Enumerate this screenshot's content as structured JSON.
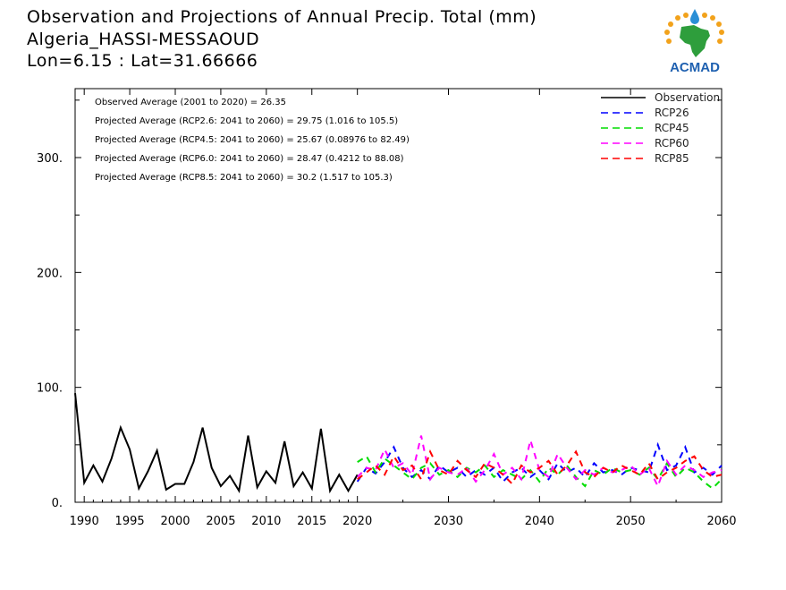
{
  "header": {
    "title_line1": "Observation and Projections of Annual Precip. Total (mm)",
    "title_line2": "Algeria_HASSI-MESSAOUD",
    "title_line3": "Lon=6.15 : Lat=31.66666"
  },
  "logo": {
    "text": "ACMAD",
    "icon": "acmad-africa-logo"
  },
  "colors": {
    "observation": "#000000",
    "rcp26": "#0000ff",
    "rcp45": "#00dd00",
    "rcp60": "#ff00ff",
    "rcp85": "#ff0000"
  },
  "chart_data": {
    "type": "line",
    "xlim": [
      1989,
      2060
    ],
    "ylim": [
      0,
      360
    ],
    "xticks": [
      1990,
      1995,
      2000,
      2005,
      2010,
      2015,
      2020,
      2030,
      2040,
      2050,
      2060
    ],
    "yticks": [
      0,
      100,
      200,
      300
    ],
    "ytick_labels": [
      "0.",
      "100.",
      "200.",
      "300."
    ],
    "legend_position": "top-right",
    "annotations": [
      "Observed Average (2001 to 2020) = 26.35",
      "Projected Average (RCP2.6: 2041 to 2060) = 29.75 (1.016 to 105.5)",
      "Projected Average (RCP4.5: 2041 to 2060) = 25.67 (0.08976 to 82.49)",
      "Projected Average (RCP6.0: 2041 to 2060) = 28.47 (0.4212 to 88.08)",
      "Projected Average (RCP8.5: 2041 to 2060) = 30.2 (1.517 to 105.3)"
    ],
    "series": [
      {
        "name": "Observation",
        "style": "solid",
        "color": "#000000",
        "x": [
          1989,
          1990,
          1991,
          1992,
          1993,
          1994,
          1995,
          1996,
          1997,
          1998,
          1999,
          2000,
          2001,
          2002,
          2003,
          2004,
          2005,
          2006,
          2007,
          2008,
          2009,
          2010,
          2011,
          2012,
          2013,
          2014,
          2015,
          2016,
          2017,
          2018,
          2019,
          2020
        ],
        "y": [
          95,
          17,
          32,
          18,
          38,
          65,
          46,
          12,
          27,
          45,
          11,
          16,
          16,
          35,
          65,
          30,
          14,
          23,
          10,
          58,
          13,
          27,
          17,
          53,
          14,
          26,
          12,
          64,
          10,
          24,
          10,
          24
        ]
      },
      {
        "name": "RCP26",
        "style": "dashed",
        "color": "#0000ff",
        "x": [
          2020,
          2021,
          2022,
          2023,
          2024,
          2025,
          2026,
          2027,
          2028,
          2029,
          2030,
          2031,
          2032,
          2033,
          2034,
          2035,
          2036,
          2037,
          2038,
          2039,
          2040,
          2041,
          2042,
          2043,
          2044,
          2045,
          2046,
          2047,
          2048,
          2049,
          2050,
          2051,
          2052,
          2053,
          2054,
          2055,
          2056,
          2057,
          2058,
          2059,
          2060
        ],
        "y": [
          18,
          30,
          25,
          35,
          48,
          30,
          22,
          28,
          20,
          32,
          26,
          30,
          22,
          28,
          24,
          30,
          18,
          26,
          30,
          22,
          28,
          20,
          34,
          26,
          30,
          22,
          34,
          26,
          28,
          24,
          30,
          28,
          26,
          50,
          28,
          32,
          48,
          26,
          30,
          24,
          32
        ]
      },
      {
        "name": "RCP45",
        "style": "dashed",
        "color": "#00dd00",
        "x": [
          2020,
          2021,
          2022,
          2023,
          2024,
          2025,
          2026,
          2027,
          2028,
          2029,
          2030,
          2031,
          2032,
          2033,
          2034,
          2035,
          2036,
          2037,
          2038,
          2039,
          2040,
          2041,
          2042,
          2043,
          2044,
          2045,
          2046,
          2047,
          2048,
          2049,
          2050,
          2051,
          2052,
          2053,
          2054,
          2055,
          2056,
          2057,
          2058,
          2059,
          2060
        ],
        "y": [
          35,
          40,
          26,
          38,
          32,
          26,
          20,
          30,
          34,
          24,
          28,
          22,
          30,
          26,
          32,
          22,
          28,
          24,
          20,
          28,
          18,
          30,
          24,
          32,
          22,
          14,
          28,
          24,
          30,
          26,
          28,
          24,
          30,
          20,
          34,
          22,
          30,
          26,
          18,
          12,
          20
        ]
      },
      {
        "name": "RCP60",
        "style": "dashed",
        "color": "#ff00ff",
        "x": [
          2020,
          2021,
          2022,
          2023,
          2024,
          2025,
          2026,
          2027,
          2028,
          2029,
          2030,
          2031,
          2032,
          2033,
          2034,
          2035,
          2036,
          2037,
          2038,
          2039,
          2040,
          2041,
          2042,
          2043,
          2044,
          2045,
          2046,
          2047,
          2048,
          2049,
          2050,
          2051,
          2052,
          2053,
          2054,
          2055,
          2056,
          2057,
          2058,
          2059,
          2060
        ],
        "y": [
          22,
          30,
          28,
          46,
          30,
          34,
          24,
          58,
          20,
          30,
          26,
          24,
          30,
          18,
          28,
          42,
          24,
          30,
          20,
          54,
          28,
          22,
          42,
          30,
          20,
          28,
          24,
          30,
          26,
          28,
          32,
          24,
          30,
          14,
          36,
          24,
          32,
          28,
          22,
          26,
          28
        ]
      },
      {
        "name": "RCP85",
        "style": "dashed",
        "color": "#ff0000",
        "x": [
          2020,
          2021,
          2022,
          2023,
          2024,
          2025,
          2026,
          2027,
          2028,
          2029,
          2030,
          2031,
          2032,
          2033,
          2034,
          2035,
          2036,
          2037,
          2038,
          2039,
          2040,
          2041,
          2042,
          2043,
          2044,
          2045,
          2046,
          2047,
          2048,
          2049,
          2050,
          2051,
          2052,
          2053,
          2054,
          2055,
          2056,
          2057,
          2058,
          2059,
          2060
        ],
        "y": [
          20,
          26,
          32,
          24,
          40,
          28,
          32,
          20,
          44,
          28,
          24,
          36,
          28,
          22,
          34,
          30,
          24,
          16,
          32,
          26,
          30,
          36,
          24,
          32,
          44,
          26,
          22,
          30,
          26,
          32,
          28,
          24,
          34,
          20,
          26,
          30,
          36,
          40,
          28,
          22,
          24
        ]
      }
    ]
  }
}
